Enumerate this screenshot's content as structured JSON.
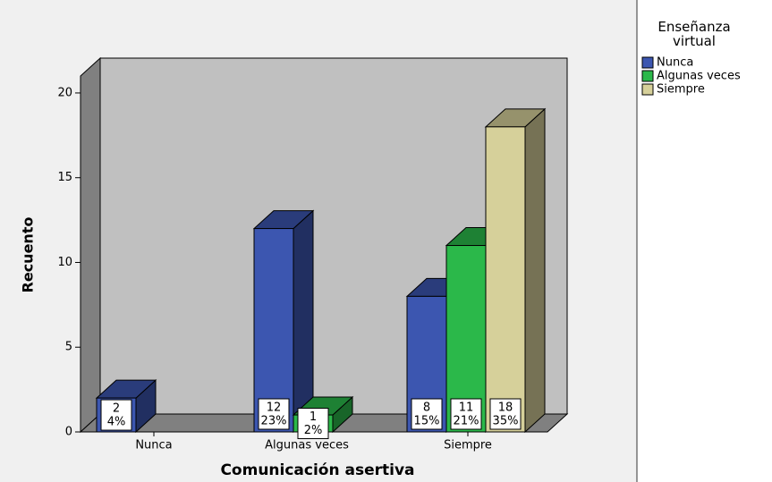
{
  "chart_data": {
    "type": "bar3d",
    "x_label": "Comunicación asertiva",
    "y_label": "Recuento",
    "legend_title": "Enseñanza virtual",
    "legend_position": "right",
    "categories": [
      "Nunca",
      "Algunas veces",
      "Siempre"
    ],
    "series": [
      {
        "name": "Nunca",
        "color": "#3c56b0",
        "values": [
          2,
          12,
          8
        ],
        "percent_labels": [
          "4%",
          "23%",
          "15%"
        ]
      },
      {
        "name": "Algunas veces",
        "color": "#2bb84a",
        "values": [
          null,
          1,
          11
        ],
        "percent_labels": [
          null,
          "2%",
          "21%"
        ]
      },
      {
        "name": "Siempre",
        "color": "#d6d09a",
        "values": [
          null,
          null,
          18
        ],
        "percent_labels": [
          null,
          null,
          "35%"
        ]
      }
    ],
    "ylim": [
      0,
      21
    ],
    "yticks": [
      0,
      5,
      10,
      15,
      20
    ]
  }
}
